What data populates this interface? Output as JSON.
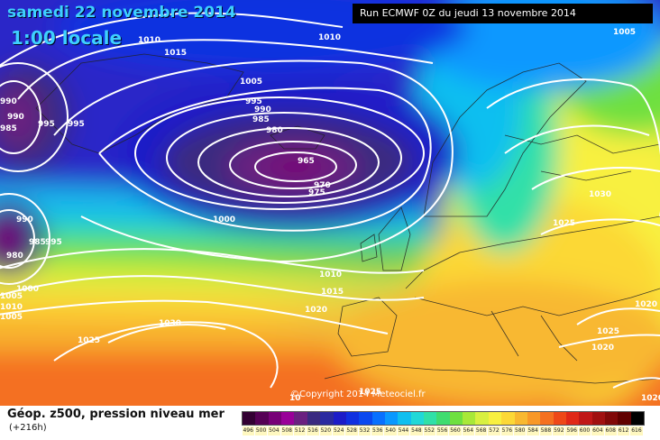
{
  "header": {
    "date": "samedi 22 novembre 2014",
    "time": "1:00 locale",
    "run": "Run ECMWF 0Z du jeudi 13 novembre 2014"
  },
  "footer": {
    "caption": "Géop. z500, pression niveau mer",
    "forecast": "(+216h)",
    "copyright": "©Copyright 2014 Meteociel.fr"
  },
  "isobar_labels": [
    "1010",
    "1015",
    "1010",
    "1005",
    "990",
    "990",
    "995",
    "995",
    "985",
    "1005",
    "995",
    "990",
    "985",
    "980",
    "965",
    "970",
    "975",
    "1000",
    "990",
    "985",
    "995",
    "980",
    "1000",
    "1005",
    "1010",
    "1030",
    "1025",
    "1020",
    "1015",
    "1010",
    "1020",
    "1025",
    "1030",
    "1025",
    "1020",
    "1020",
    "1005",
    "10",
    "1025"
  ],
  "scale": {
    "values": [
      "496",
      "500",
      "504",
      "508",
      "512",
      "516",
      "520",
      "524",
      "528",
      "532",
      "536",
      "540",
      "544",
      "548",
      "552",
      "556",
      "560",
      "564",
      "568",
      "572",
      "576",
      "580",
      "584",
      "588",
      "592",
      "596",
      "600",
      "604",
      "608",
      "612",
      "616"
    ],
    "colors": [
      "#330033",
      "#550055",
      "#770077",
      "#990099",
      "#6a2080",
      "#3a2a80",
      "#2a2aa0",
      "#1c1cc8",
      "#1030e0",
      "#0a48f0",
      "#0870ff",
      "#0a98ff",
      "#10bff0",
      "#20d8d8",
      "#30e0a8",
      "#3fdc70",
      "#6ee040",
      "#a8e838",
      "#d8f040",
      "#f8f040",
      "#fcd836",
      "#f8b830",
      "#f89828",
      "#f47020",
      "#ee4818",
      "#e02818",
      "#c01818",
      "#a01010",
      "#800808",
      "#600000",
      "#000000"
    ]
  },
  "colors": {
    "title": "#3ed0ff",
    "isobar": "#ffffff",
    "land_border": "#222222"
  }
}
